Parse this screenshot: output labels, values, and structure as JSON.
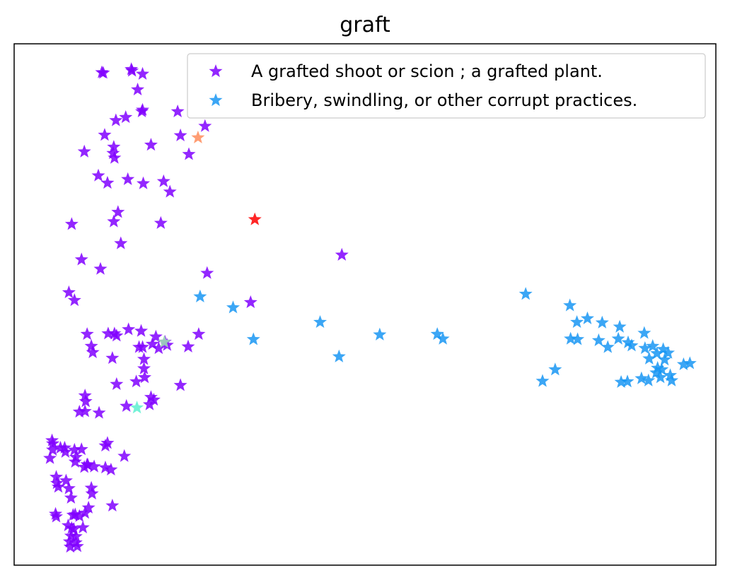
{
  "chart_data": {
    "type": "scatter",
    "title": "graft",
    "xlabel": "",
    "ylabel": "",
    "xlim": [
      0,
      100
    ],
    "ylim": [
      0,
      100
    ],
    "axis_ticks": false,
    "grid": false,
    "marker": "star",
    "legend_placement": "top-right",
    "series": [
      {
        "name": "A grafted shoot or scion ; a grafted plant.",
        "color": "#8000ff",
        "points": [
          [
            12.5,
            94.5
          ],
          [
            12.7,
            94.4
          ],
          [
            16.7,
            95.1
          ],
          [
            16.8,
            94.8
          ],
          [
            18.3,
            94.2
          ],
          [
            17.6,
            91.2
          ],
          [
            18.3,
            87.3
          ],
          [
            18.2,
            87.0
          ],
          [
            15.9,
            85.9
          ],
          [
            14.5,
            85.3
          ],
          [
            23.3,
            87.0
          ],
          [
            27.2,
            84.2
          ],
          [
            23.7,
            82.4
          ],
          [
            12.9,
            82.5
          ],
          [
            14.2,
            80.2
          ],
          [
            14.1,
            79.0
          ],
          [
            14.3,
            78.1
          ],
          [
            19.5,
            80.6
          ],
          [
            10.0,
            79.3
          ],
          [
            24.9,
            78.8
          ],
          [
            12.0,
            74.7
          ],
          [
            13.3,
            73.3
          ],
          [
            16.2,
            74.0
          ],
          [
            18.4,
            73.2
          ],
          [
            21.3,
            73.6
          ],
          [
            22.2,
            71.6
          ],
          [
            14.8,
            67.7
          ],
          [
            14.2,
            65.9
          ],
          [
            20.9,
            65.6
          ],
          [
            8.2,
            65.4
          ],
          [
            15.2,
            61.7
          ],
          [
            9.6,
            58.6
          ],
          [
            12.3,
            56.8
          ],
          [
            27.5,
            56.0
          ],
          [
            7.8,
            52.3
          ],
          [
            8.6,
            50.8
          ],
          [
            33.7,
            50.4
          ],
          [
            46.7,
            59.5
          ],
          [
            10.4,
            44.3
          ],
          [
            13.4,
            44.4
          ],
          [
            14.3,
            44.4
          ],
          [
            14.6,
            44.0
          ],
          [
            16.3,
            45.2
          ],
          [
            18.1,
            44.9
          ],
          [
            20.2,
            43.8
          ],
          [
            20.6,
            41.6
          ],
          [
            21.5,
            42.8
          ],
          [
            19.7,
            42.4
          ],
          [
            18.3,
            41.8
          ],
          [
            17.8,
            41.8
          ],
          [
            11.0,
            42.0
          ],
          [
            11.2,
            40.8
          ],
          [
            14.0,
            39.7
          ],
          [
            18.5,
            39.5
          ],
          [
            18.5,
            37.7
          ],
          [
            18.6,
            36.0
          ],
          [
            26.3,
            44.3
          ],
          [
            24.8,
            41.9
          ],
          [
            21.8,
            42.2
          ],
          [
            17.4,
            35.2
          ],
          [
            14.6,
            34.7
          ],
          [
            10.1,
            32.5
          ],
          [
            10.2,
            31.4
          ],
          [
            10.1,
            29.5
          ],
          [
            9.3,
            29.4
          ],
          [
            19.5,
            32.2
          ],
          [
            23.7,
            34.5
          ],
          [
            19.3,
            30.8
          ],
          [
            19.9,
            31.7
          ],
          [
            16.0,
            30.5
          ],
          [
            12.1,
            29.2
          ],
          [
            5.4,
            23.9
          ],
          [
            5.5,
            23.3
          ],
          [
            6.6,
            22.5
          ],
          [
            5.5,
            22.1
          ],
          [
            7.2,
            22.5
          ],
          [
            8.6,
            22.1
          ],
          [
            7.3,
            21.7
          ],
          [
            8.8,
            20.7
          ],
          [
            9.6,
            22.2
          ],
          [
            13.0,
            22.9
          ],
          [
            13.3,
            23.4
          ],
          [
            15.7,
            20.9
          ],
          [
            5.1,
            20.5
          ],
          [
            8.7,
            19.8
          ],
          [
            10.4,
            19.3
          ],
          [
            10.0,
            18.8
          ],
          [
            10.5,
            19.2
          ],
          [
            11.4,
            18.9
          ],
          [
            13.0,
            18.7
          ],
          [
            13.8,
            18.3
          ],
          [
            6.0,
            16.9
          ],
          [
            6.1,
            15.7
          ],
          [
            7.4,
            16.2
          ],
          [
            6.3,
            15.0
          ],
          [
            7.8,
            14.7
          ],
          [
            11.0,
            14.8
          ],
          [
            11.1,
            13.7
          ],
          [
            8.1,
            12.9
          ],
          [
            14.0,
            11.4
          ],
          [
            10.6,
            11.0
          ],
          [
            5.9,
            9.8
          ],
          [
            6.0,
            9.3
          ],
          [
            8.4,
            9.6
          ],
          [
            8.7,
            9.7
          ],
          [
            9.3,
            9.4
          ],
          [
            10.1,
            10.0
          ],
          [
            7.7,
            7.6
          ],
          [
            8.2,
            7.1
          ],
          [
            8.5,
            6.9
          ],
          [
            9.8,
            7.2
          ],
          [
            8.1,
            5.6
          ],
          [
            8.8,
            5.5
          ],
          [
            7.9,
            4.5
          ],
          [
            8.8,
            4.3
          ],
          [
            9.0,
            3.6
          ],
          [
            8.0,
            3.5
          ]
        ]
      },
      {
        "name": "Bribery, swindling, or other corrupt practices.",
        "color": "#1996f3",
        "points": [
          [
            26.5,
            51.5
          ],
          [
            31.2,
            49.4
          ],
          [
            34.1,
            43.3
          ],
          [
            43.6,
            46.6
          ],
          [
            46.3,
            40.0
          ],
          [
            52.1,
            44.2
          ],
          [
            60.3,
            44.3
          ],
          [
            61.1,
            43.4
          ],
          [
            72.9,
            52.0
          ],
          [
            79.2,
            49.8
          ],
          [
            80.2,
            46.6
          ],
          [
            81.7,
            47.3
          ],
          [
            83.8,
            46.5
          ],
          [
            86.3,
            45.7
          ],
          [
            89.8,
            44.5
          ],
          [
            79.3,
            43.4
          ],
          [
            80.3,
            43.3
          ],
          [
            83.3,
            43.1
          ],
          [
            84.6,
            41.8
          ],
          [
            86.1,
            43.4
          ],
          [
            87.5,
            42.7
          ],
          [
            88.0,
            42.1
          ],
          [
            89.9,
            41.6
          ],
          [
            91.0,
            42.0
          ],
          [
            91.6,
            40.6
          ],
          [
            92.5,
            41.4
          ],
          [
            93.2,
            40.7
          ],
          [
            90.5,
            39.6
          ],
          [
            92.7,
            39.4
          ],
          [
            95.4,
            38.5
          ],
          [
            96.3,
            38.7
          ],
          [
            92.3,
            37.5
          ],
          [
            91.5,
            36.9
          ],
          [
            93.5,
            36.4
          ],
          [
            92.1,
            36.0
          ],
          [
            93.7,
            35.4
          ],
          [
            89.4,
            35.8
          ],
          [
            90.4,
            35.4
          ],
          [
            86.5,
            35.1
          ],
          [
            87.4,
            35.2
          ],
          [
            91.7,
            37.8
          ],
          [
            77.1,
            37.5
          ],
          [
            75.3,
            35.3
          ]
        ]
      },
      {
        "name": "",
        "color": "#ff0000",
        "points": [
          [
            34.3,
            66.3
          ]
        ]
      },
      {
        "name": "",
        "color": "#ff8c5a",
        "points": [
          [
            26.2,
            82.0
          ]
        ]
      },
      {
        "name": "",
        "color": "#9ee6b0",
        "points": [
          [
            21.4,
            42.8
          ]
        ]
      },
      {
        "name": "",
        "color": "#5df0d0",
        "points": [
          [
            17.5,
            30.2
          ]
        ]
      }
    ]
  }
}
